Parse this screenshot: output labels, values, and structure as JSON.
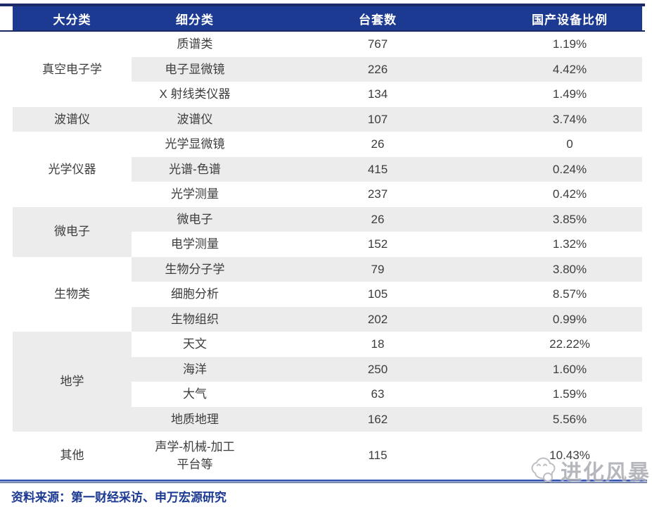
{
  "chart_data": {
    "type": "table",
    "columns": [
      "大分类",
      "细分类",
      "台套数",
      "国产设备比例"
    ],
    "groups": [
      {
        "category": "真空电子学",
        "rows": [
          {
            "sub": "质谱类",
            "count": 767,
            "pct": "1.19%"
          },
          {
            "sub": "电子显微镜",
            "count": 226,
            "pct": "4.42%"
          },
          {
            "sub": "X 射线类仪器",
            "count": 134,
            "pct": "1.49%"
          }
        ]
      },
      {
        "category": "波谱仪",
        "rows": [
          {
            "sub": "波谱仪",
            "count": 107,
            "pct": "3.74%"
          }
        ]
      },
      {
        "category": "光学仪器",
        "rows": [
          {
            "sub": "光学显微镜",
            "count": 26,
            "pct": "0"
          },
          {
            "sub": "光谱-色谱",
            "count": 415,
            "pct": "0.24%"
          },
          {
            "sub": "光学测量",
            "count": 237,
            "pct": "0.42%"
          }
        ]
      },
      {
        "category": "微电子",
        "rows": [
          {
            "sub": "微电子",
            "count": 26,
            "pct": "3.85%"
          },
          {
            "sub": "电学测量",
            "count": 152,
            "pct": "1.32%"
          }
        ]
      },
      {
        "category": "生物类",
        "rows": [
          {
            "sub": "生物分子学",
            "count": 79,
            "pct": "3.80%"
          },
          {
            "sub": "细胞分析",
            "count": 105,
            "pct": "8.57%"
          },
          {
            "sub": "生物组织",
            "count": 202,
            "pct": "0.99%"
          }
        ]
      },
      {
        "category": "地学",
        "rows": [
          {
            "sub": "天文",
            "count": 18,
            "pct": "22.22%"
          },
          {
            "sub": "海洋",
            "count": 250,
            "pct": "1.60%"
          },
          {
            "sub": "大气",
            "count": 63,
            "pct": "1.59%"
          },
          {
            "sub": "地质地理",
            "count": 162,
            "pct": "5.56%"
          }
        ]
      },
      {
        "category": "其他",
        "rows": [
          {
            "sub": "声学-机械-加工\n平台等",
            "count": 115,
            "pct": "10.43%"
          }
        ]
      }
    ]
  },
  "footer": {
    "source": "资料来源：第一财经采访、申万宏源研究"
  },
  "watermark": {
    "text": "进化风暴",
    "icon": "cloud-face-icon"
  },
  "colors": {
    "header_bg": "#1c3a92",
    "dark_border": "#1a2a64",
    "row_stripe": "#ececec",
    "body_text": "#3d3d3d",
    "source_text": "#1c3a92",
    "bottom_accent": "#3f5cb5",
    "watermark_gray": "#a9abb2"
  }
}
